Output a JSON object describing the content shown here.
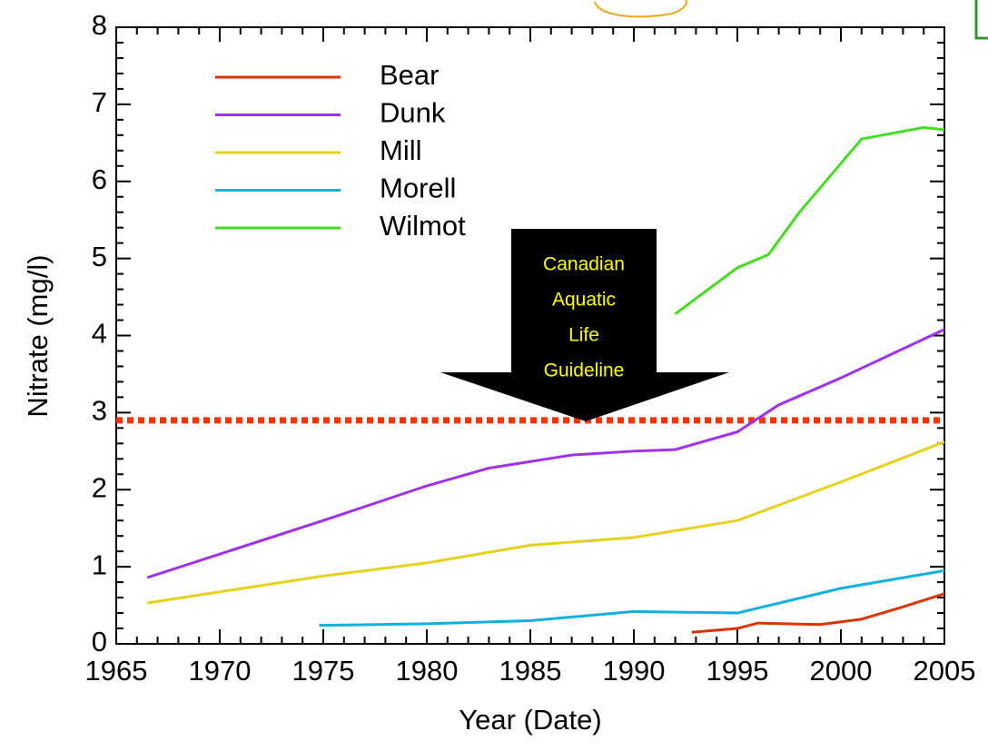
{
  "chart_data": {
    "type": "line",
    "xlabel": "Year (Date)",
    "ylabel": "Nitrate (mg/l)",
    "xlim": [
      1965,
      2005
    ],
    "xticks": [
      1965,
      1970,
      1975,
      1980,
      1985,
      1990,
      1995,
      2000,
      2005
    ],
    "ylim": [
      0,
      8
    ],
    "yticks": [
      0,
      1,
      2,
      3,
      4,
      5,
      6,
      7,
      8
    ],
    "series": [
      {
        "name": "Bear",
        "color": "#dd3300",
        "x": [
          1992.8,
          1995,
          1996,
          1999,
          2001,
          2003,
          2005
        ],
        "values": [
          0.15,
          0.2,
          0.27,
          0.25,
          0.32,
          0.48,
          0.65
        ]
      },
      {
        "name": "Dunk",
        "color": "#a030f0",
        "x": [
          1966.5,
          1975,
          1980,
          1983,
          1987,
          1990,
          1992,
          1995,
          1997,
          2000,
          2005
        ],
        "values": [
          0.86,
          1.6,
          2.05,
          2.28,
          2.45,
          2.5,
          2.52,
          2.75,
          3.1,
          3.45,
          4.08
        ]
      },
      {
        "name": "Mill",
        "color": "#e6d21e",
        "x": [
          1966.5,
          1975,
          1980,
          1985,
          1990,
          1995,
          1997,
          2000,
          2005
        ],
        "values": [
          0.53,
          0.88,
          1.05,
          1.28,
          1.38,
          1.6,
          1.8,
          2.1,
          2.62
        ]
      },
      {
        "name": "Morell",
        "color": "#10b0e0",
        "x": [
          1974.8,
          1980,
          1985,
          1990,
          1995,
          2000,
          2005
        ],
        "values": [
          0.24,
          0.26,
          0.3,
          0.42,
          0.4,
          0.72,
          0.95
        ]
      },
      {
        "name": "Wilmot",
        "color": "#44dd22",
        "x": [
          1992,
          1995,
          1996.5,
          1998,
          2001,
          2002,
          2004,
          2005
        ],
        "values": [
          4.28,
          4.88,
          5.05,
          5.6,
          6.55,
          6.6,
          6.7,
          6.67
        ]
      }
    ],
    "guideline": {
      "value": 2.9,
      "color": "#ff3300"
    },
    "annotation": [
      "Canadian",
      "Aquatic",
      "Life",
      "Guideline"
    ]
  }
}
